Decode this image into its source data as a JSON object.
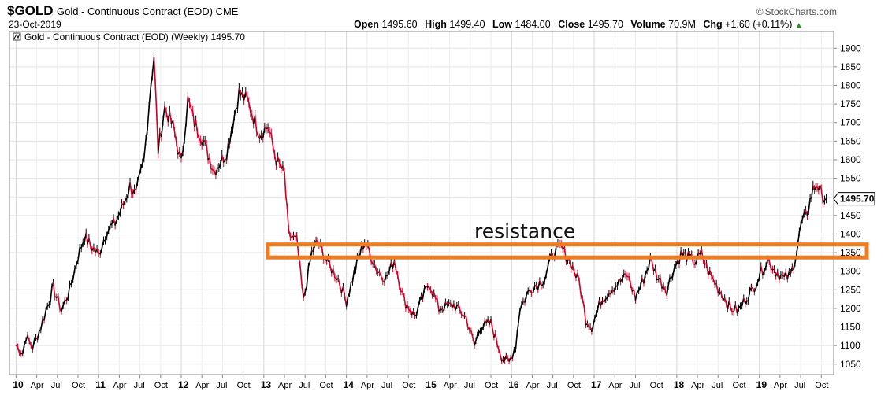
{
  "header": {
    "symbol": "$GOLD",
    "description": "Gold - Continuous Contract (EOD) CME",
    "date": "23-Oct-2019",
    "brand": "StockCharts.com",
    "copyright_symbol": "©",
    "open_label": "Open",
    "open_value": "1495.60",
    "high_label": "High",
    "high_value": "1499.40",
    "low_label": "Low",
    "low_value": "1484.00",
    "close_label": "Close",
    "close_value": "1495.70",
    "volume_label": "Volume",
    "volume_value": "70.9M",
    "chg_label": "Chg",
    "chg_value": "+1.60 (+0.11%)",
    "chg_arrow": "▲"
  },
  "chart_data": {
    "type": "line",
    "legend": "Gold - Continuous Contract (EOD) (Weekly) 1495.70",
    "last_price_label": "1495.70",
    "annotation": "resistance",
    "resistance_band": [
      1337,
      1372
    ],
    "y_ticks": [
      1050,
      1100,
      1150,
      1200,
      1250,
      1300,
      1350,
      1400,
      1450,
      1500,
      1550,
      1600,
      1650,
      1700,
      1750,
      1800,
      1850,
      1900
    ],
    "ylim": [
      1022,
      1945
    ],
    "xlim": [
      2009.92,
      2019.9
    ],
    "x_ticks": [
      {
        "t": 2010.0,
        "label": "10",
        "year": true
      },
      {
        "t": 2010.25,
        "label": "Apr"
      },
      {
        "t": 2010.5,
        "label": "Jul"
      },
      {
        "t": 2010.75,
        "label": "Oct"
      },
      {
        "t": 2011.0,
        "label": "11",
        "year": true
      },
      {
        "t": 2011.25,
        "label": "Apr"
      },
      {
        "t": 2011.5,
        "label": "Jul"
      },
      {
        "t": 2011.75,
        "label": "Oct"
      },
      {
        "t": 2012.0,
        "label": "12",
        "year": true
      },
      {
        "t": 2012.25,
        "label": "Apr"
      },
      {
        "t": 2012.5,
        "label": "Jul"
      },
      {
        "t": 2012.75,
        "label": "Oct"
      },
      {
        "t": 2013.0,
        "label": "13",
        "year": true
      },
      {
        "t": 2013.25,
        "label": "Apr"
      },
      {
        "t": 2013.5,
        "label": "Jul"
      },
      {
        "t": 2013.75,
        "label": "Oct"
      },
      {
        "t": 2014.0,
        "label": "14",
        "year": true
      },
      {
        "t": 2014.25,
        "label": "Apr"
      },
      {
        "t": 2014.5,
        "label": "Jul"
      },
      {
        "t": 2014.75,
        "label": "Oct"
      },
      {
        "t": 2015.0,
        "label": "15",
        "year": true
      },
      {
        "t": 2015.25,
        "label": "Apr"
      },
      {
        "t": 2015.5,
        "label": "Jul"
      },
      {
        "t": 2015.75,
        "label": "Oct"
      },
      {
        "t": 2016.0,
        "label": "16",
        "year": true
      },
      {
        "t": 2016.25,
        "label": "Apr"
      },
      {
        "t": 2016.5,
        "label": "Jul"
      },
      {
        "t": 2016.75,
        "label": "Oct"
      },
      {
        "t": 2017.0,
        "label": "17",
        "year": true
      },
      {
        "t": 2017.25,
        "label": "Apr"
      },
      {
        "t": 2017.5,
        "label": "Jul"
      },
      {
        "t": 2017.75,
        "label": "Oct"
      },
      {
        "t": 2018.0,
        "label": "18",
        "year": true
      },
      {
        "t": 2018.25,
        "label": "Apr"
      },
      {
        "t": 2018.5,
        "label": "Jul"
      },
      {
        "t": 2018.75,
        "label": "Oct"
      },
      {
        "t": 2019.0,
        "label": "19",
        "year": true
      },
      {
        "t": 2019.25,
        "label": "Apr"
      },
      {
        "t": 2019.5,
        "label": "Jul"
      },
      {
        "t": 2019.75,
        "label": "Oct"
      }
    ],
    "series": [
      {
        "color_up": "#000000",
        "color_down": "#d6002a",
        "points": [
          [
            2010.0,
            1100
          ],
          [
            2010.08,
            1080
          ],
          [
            2010.12,
            1125
          ],
          [
            2010.2,
            1095
          ],
          [
            2010.3,
            1150
          ],
          [
            2010.4,
            1220
          ],
          [
            2010.45,
            1255
          ],
          [
            2010.55,
            1195
          ],
          [
            2010.65,
            1250
          ],
          [
            2010.75,
            1340
          ],
          [
            2010.83,
            1395
          ],
          [
            2010.9,
            1370
          ],
          [
            2011.0,
            1345
          ],
          [
            2011.1,
            1410
          ],
          [
            2011.2,
            1430
          ],
          [
            2011.3,
            1480
          ],
          [
            2011.38,
            1530
          ],
          [
            2011.45,
            1505
          ],
          [
            2011.55,
            1600
          ],
          [
            2011.63,
            1800
          ],
          [
            2011.67,
            1880
          ],
          [
            2011.72,
            1625
          ],
          [
            2011.8,
            1740
          ],
          [
            2011.9,
            1690
          ],
          [
            2012.0,
            1590
          ],
          [
            2012.08,
            1760
          ],
          [
            2012.16,
            1700
          ],
          [
            2012.25,
            1660
          ],
          [
            2012.4,
            1570
          ],
          [
            2012.55,
            1620
          ],
          [
            2012.7,
            1780
          ],
          [
            2012.8,
            1760
          ],
          [
            2012.95,
            1670
          ],
          [
            2013.05,
            1690
          ],
          [
            2013.15,
            1600
          ],
          [
            2013.25,
            1560
          ],
          [
            2013.3,
            1400
          ],
          [
            2013.4,
            1380
          ],
          [
            2013.48,
            1220
          ],
          [
            2013.58,
            1350
          ],
          [
            2013.65,
            1380
          ],
          [
            2013.78,
            1320
          ],
          [
            2013.9,
            1280
          ],
          [
            2014.0,
            1220
          ],
          [
            2014.15,
            1340
          ],
          [
            2014.22,
            1380
          ],
          [
            2014.38,
            1300
          ],
          [
            2014.48,
            1280
          ],
          [
            2014.58,
            1330
          ],
          [
            2014.7,
            1220
          ],
          [
            2014.83,
            1180
          ],
          [
            2015.0,
            1270
          ],
          [
            2015.12,
            1200
          ],
          [
            2015.3,
            1210
          ],
          [
            2015.45,
            1175
          ],
          [
            2015.55,
            1100
          ],
          [
            2015.62,
            1150
          ],
          [
            2015.75,
            1160
          ],
          [
            2015.88,
            1070
          ],
          [
            2015.97,
            1055
          ],
          [
            2016.05,
            1100
          ],
          [
            2016.1,
            1200
          ],
          [
            2016.22,
            1250
          ],
          [
            2016.4,
            1280
          ],
          [
            2016.5,
            1350
          ],
          [
            2016.6,
            1365
          ],
          [
            2016.72,
            1320
          ],
          [
            2016.82,
            1270
          ],
          [
            2016.9,
            1170
          ],
          [
            2016.97,
            1150
          ],
          [
            2017.08,
            1220
          ],
          [
            2017.2,
            1250
          ],
          [
            2017.3,
            1270
          ],
          [
            2017.4,
            1290
          ],
          [
            2017.5,
            1230
          ],
          [
            2017.6,
            1280
          ],
          [
            2017.68,
            1330
          ],
          [
            2017.78,
            1280
          ],
          [
            2017.88,
            1250
          ],
          [
            2017.95,
            1300
          ],
          [
            2018.05,
            1345
          ],
          [
            2018.12,
            1340
          ],
          [
            2018.22,
            1325
          ],
          [
            2018.3,
            1345
          ],
          [
            2018.38,
            1300
          ],
          [
            2018.5,
            1255
          ],
          [
            2018.6,
            1220
          ],
          [
            2018.65,
            1200
          ],
          [
            2018.75,
            1195
          ],
          [
            2018.83,
            1225
          ],
          [
            2018.92,
            1250
          ],
          [
            2019.0,
            1290
          ],
          [
            2019.1,
            1330
          ],
          [
            2019.2,
            1300
          ],
          [
            2019.3,
            1280
          ],
          [
            2019.38,
            1290
          ],
          [
            2019.45,
            1350
          ],
          [
            2019.5,
            1420
          ],
          [
            2019.58,
            1460
          ],
          [
            2019.65,
            1520
          ],
          [
            2019.7,
            1535
          ],
          [
            2019.75,
            1505
          ],
          [
            2019.81,
            1495
          ]
        ]
      }
    ]
  }
}
